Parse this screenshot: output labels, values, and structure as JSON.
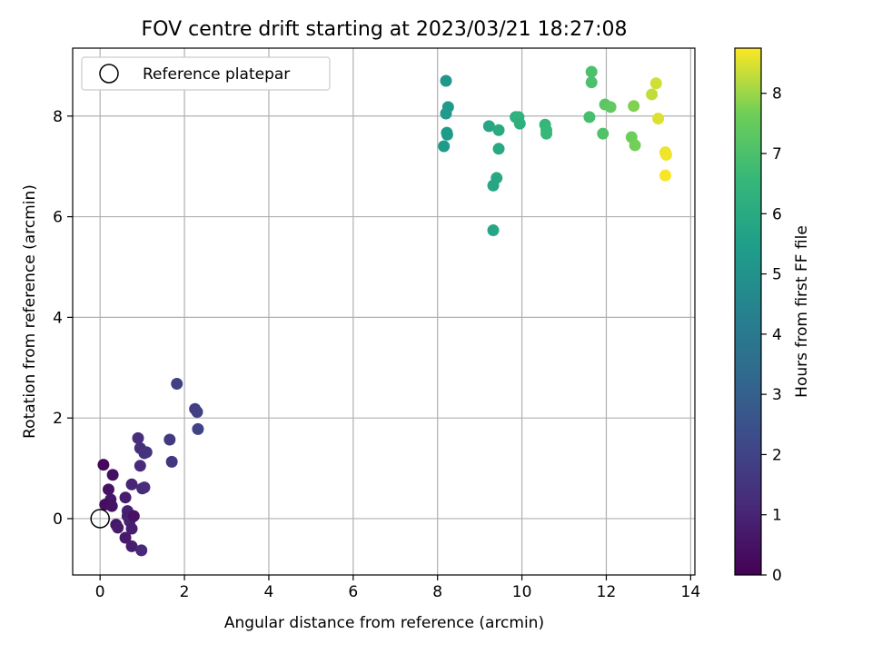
{
  "chart_data": {
    "type": "scatter",
    "title": "FOV centre drift starting at 2023/03/21 18:27:08",
    "xlabel": "Angular distance from reference (arcmin)",
    "ylabel": "Rotation from reference (arcmin)",
    "xlim": [
      -0.65,
      14.1
    ],
    "ylim": [
      -1.12,
      9.35
    ],
    "xticks": [
      0,
      2,
      4,
      6,
      8,
      10,
      12,
      14
    ],
    "yticks": [
      0,
      2,
      4,
      6,
      8
    ],
    "grid": true,
    "legend": {
      "position": "top-left",
      "entries": [
        "Reference platepar"
      ]
    },
    "reference_point": {
      "x": 0,
      "y": 0
    },
    "colorbar": {
      "label": "Hours from first FF file",
      "min": 0,
      "max": 8.75,
      "ticks": [
        0,
        1,
        2,
        3,
        4,
        5,
        6,
        7,
        8
      ],
      "colormap": "viridis"
    },
    "points": [
      [
        0.08,
        1.07,
        0.2
      ],
      [
        0.3,
        0.87,
        0.4
      ],
      [
        0.2,
        0.58,
        0.5
      ],
      [
        0.25,
        0.38,
        0.6
      ],
      [
        0.12,
        0.28,
        0.4
      ],
      [
        0.28,
        0.25,
        0.5
      ],
      [
        0.38,
        -0.12,
        0.6
      ],
      [
        0.42,
        -0.18,
        0.7
      ],
      [
        0.6,
        0.42,
        0.8
      ],
      [
        0.65,
        0.15,
        0.9
      ],
      [
        0.65,
        0.05,
        0.8
      ],
      [
        0.7,
        -0.05,
        0.9
      ],
      [
        0.75,
        -0.2,
        0.8
      ],
      [
        0.6,
        -0.38,
        0.7
      ],
      [
        0.75,
        -0.55,
        0.8
      ],
      [
        0.8,
        0.05,
        0.5
      ],
      [
        0.75,
        0.68,
        1.0
      ],
      [
        0.9,
        1.6,
        1.3
      ],
      [
        0.95,
        1.4,
        1.3
      ],
      [
        0.95,
        1.05,
        1.2
      ],
      [
        1.05,
        1.3,
        1.4
      ],
      [
        1.1,
        1.32,
        1.5
      ],
      [
        1.0,
        0.6,
        1.2
      ],
      [
        1.05,
        0.62,
        1.3
      ],
      [
        0.98,
        -0.63,
        1.1
      ],
      [
        1.65,
        1.57,
        1.7
      ],
      [
        1.7,
        1.13,
        1.6
      ],
      [
        1.82,
        2.68,
        1.9
      ],
      [
        2.25,
        2.18,
        1.8
      ],
      [
        2.3,
        2.12,
        1.9
      ],
      [
        2.32,
        1.78,
        2.0
      ],
      [
        8.2,
        8.7,
        5.2
      ],
      [
        8.25,
        8.18,
        5.3
      ],
      [
        8.2,
        8.05,
        5.3
      ],
      [
        8.22,
        7.67,
        5.4
      ],
      [
        8.23,
        7.63,
        5.4
      ],
      [
        8.15,
        7.4,
        5.4
      ],
      [
        9.22,
        7.8,
        5.8
      ],
      [
        9.45,
        7.72,
        6.0
      ],
      [
        9.45,
        7.35,
        5.9
      ],
      [
        9.4,
        6.77,
        5.9
      ],
      [
        9.32,
        6.62,
        5.8
      ],
      [
        9.32,
        5.73,
        5.8
      ],
      [
        9.85,
        7.98,
        6.2
      ],
      [
        9.92,
        7.98,
        6.3
      ],
      [
        9.95,
        7.85,
        6.2
      ],
      [
        10.55,
        7.83,
        6.5
      ],
      [
        10.58,
        7.72,
        6.6
      ],
      [
        10.58,
        7.65,
        6.6
      ],
      [
        11.65,
        8.88,
        7.0
      ],
      [
        11.65,
        8.67,
        7.0
      ],
      [
        11.6,
        7.98,
        6.9
      ],
      [
        11.92,
        7.65,
        7.1
      ],
      [
        11.97,
        8.23,
        7.3
      ],
      [
        12.1,
        8.18,
        7.4
      ],
      [
        12.6,
        7.58,
        7.6
      ],
      [
        12.68,
        7.42,
        7.7
      ],
      [
        12.65,
        8.2,
        7.8
      ],
      [
        13.08,
        8.43,
        8.3
      ],
      [
        13.18,
        8.65,
        8.4
      ],
      [
        13.23,
        7.95,
        8.5
      ],
      [
        13.4,
        7.28,
        8.6
      ],
      [
        13.42,
        7.23,
        8.65
      ],
      [
        13.4,
        6.82,
        8.7
      ]
    ]
  }
}
